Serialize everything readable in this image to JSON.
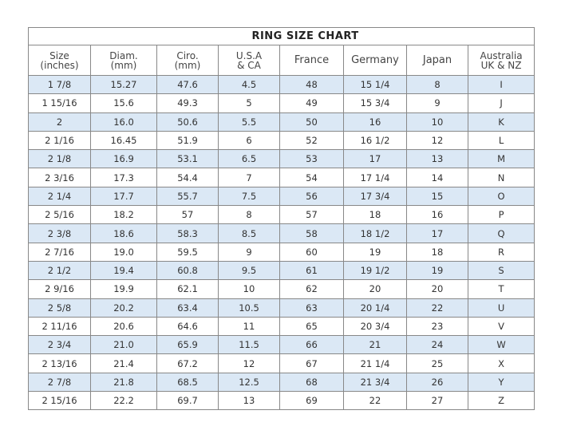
{
  "title": "RING  SIZE  CHART",
  "headers": [
    [
      "Size",
      "(inches)"
    ],
    [
      "Diam.",
      "(mm)"
    ],
    [
      "Ciro.",
      "(mm)"
    ],
    [
      "U.S.A",
      "& CA"
    ],
    [
      "France",
      ""
    ],
    [
      "Germany",
      ""
    ],
    [
      "Japan",
      ""
    ],
    [
      "Australia",
      "UK & NZ"
    ]
  ],
  "rows": [
    [
      "1 7/8",
      "15.27",
      "47.6",
      "4.5",
      "48",
      "15 1/4",
      "8",
      "I"
    ],
    [
      "1 15/16",
      "15.6",
      "49.3",
      "5",
      "49",
      "15 3/4",
      "9",
      "J"
    ],
    [
      "2",
      "16.0",
      "50.6",
      "5.5",
      "50",
      "16",
      "10",
      "K"
    ],
    [
      "2 1/16",
      "16.45",
      "51.9",
      "6",
      "52",
      "16 1/2",
      "12",
      "L"
    ],
    [
      "2 1/8",
      "16.9",
      "53.1",
      "6.5",
      "53",
      "17",
      "13",
      "M"
    ],
    [
      "2 3/16",
      "17.3",
      "54.4",
      "7",
      "54",
      "17 1/4",
      "14",
      "N"
    ],
    [
      "2 1/4",
      "17.7",
      "55.7",
      "7.5",
      "56",
      "17 3/4",
      "15",
      "O"
    ],
    [
      "2 5/16",
      "18.2",
      "57",
      "8",
      "57",
      "18",
      "16",
      "P"
    ],
    [
      "2 3/8",
      "18.6",
      "58.3",
      "8.5",
      "58",
      "18 1/2",
      "17",
      "Q"
    ],
    [
      "2 7/16",
      "19.0",
      "59.5",
      "9",
      "60",
      "19",
      "18",
      "R"
    ],
    [
      "2 1/2",
      "19.4",
      "60.8",
      "9.5",
      "61",
      "19 1/2",
      "19",
      "S"
    ],
    [
      "2 9/16",
      "19.9",
      "62.1",
      "10",
      "62",
      "20",
      "20",
      "T"
    ],
    [
      "2 5/8",
      "20.2",
      "63.4",
      "10.5",
      "63",
      "20 1/4",
      "22",
      "U"
    ],
    [
      "2 11/16",
      "20.6",
      "64.6",
      "11",
      "65",
      "20 3/4",
      "23",
      "V"
    ],
    [
      "2 3/4",
      "21.0",
      "65.9",
      "11.5",
      "66",
      "21",
      "24",
      "W"
    ],
    [
      "2 13/16",
      "21.4",
      "67.2",
      "12",
      "67",
      "21 1/4",
      "25",
      "X"
    ],
    [
      "2 7/8",
      "21.8",
      "68.5",
      "12.5",
      "68",
      "21 3/4",
      "26",
      "Y"
    ],
    [
      "2 15/16",
      "22.2",
      "69.7",
      "13",
      "69",
      "22",
      "27",
      "Z"
    ]
  ]
}
